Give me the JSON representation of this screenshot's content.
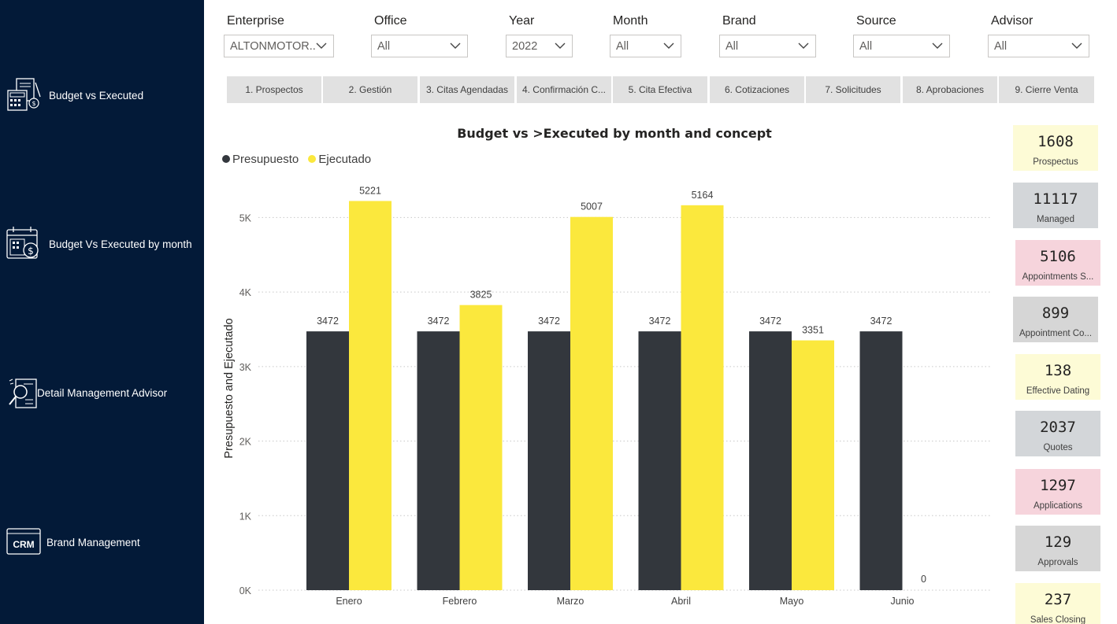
{
  "sidebar": {
    "items": [
      {
        "label": "Budget vs Executed",
        "icon": "calculator-document-icon"
      },
      {
        "label": "Budget Vs Executed by month",
        "icon": "calendar-money-icon"
      },
      {
        "label": "Detail Management Advisor",
        "icon": "document-search-icon"
      },
      {
        "label": "Brand Management",
        "icon": "crm-icon"
      }
    ]
  },
  "filters": [
    {
      "label": "Enterprise",
      "value": "ALTONMOTOR..."
    },
    {
      "label": "Office",
      "value": "All"
    },
    {
      "label": "Year",
      "value": "2022"
    },
    {
      "label": "Month",
      "value": "All"
    },
    {
      "label": "Brand",
      "value": "All"
    },
    {
      "label": "Source",
      "value": "All"
    },
    {
      "label": "Advisor",
      "value": "All"
    }
  ],
  "tabs": [
    "1. Prospectos",
    "2. Gestión",
    "3. Citas Agendadas",
    "4. Confirmación C...",
    "5. Cita Efectiva",
    "6. Cotizaciones",
    "7. Solicitudes",
    "8. Aprobaciones",
    "9. Cierre Venta"
  ],
  "chart_data": {
    "type": "bar",
    "title": "Budget vs >Executed by month and concept",
    "ylabel": "Presupuesto and Ejecutado",
    "xlabel": "",
    "categories": [
      "Enero",
      "Febrero",
      "Marzo",
      "Abril",
      "Mayo",
      "Junio"
    ],
    "series": [
      {
        "name": "Presupuesto",
        "color": "#33373d",
        "values": [
          3472,
          3472,
          3472,
          3472,
          3472,
          3472
        ]
      },
      {
        "name": "Ejecutado",
        "color": "#fbe83d",
        "values": [
          5221,
          3825,
          5007,
          5164,
          3351,
          0
        ]
      }
    ],
    "ylim": [
      0,
      5500
    ],
    "yticks": [
      0,
      1000,
      2000,
      3000,
      4000,
      5000
    ],
    "ytick_labels": [
      "0K",
      "1K",
      "2K",
      "3K",
      "4K",
      "5K"
    ],
    "grid": true,
    "legend_position": "top-left"
  },
  "kpis": [
    {
      "value": "1608",
      "label": "Prospectus",
      "color": "#fdfbd6"
    },
    {
      "value": "11117",
      "label": "Managed",
      "color": "#d3d6d9"
    },
    {
      "value": "5106",
      "label": "Appointments S...",
      "color": "#f6d4dc"
    },
    {
      "value": "899",
      "label": "Appointment Co...",
      "color": "#d6d6d6"
    },
    {
      "value": "138",
      "label": "Effective Dating",
      "color": "#fdfbd6"
    },
    {
      "value": "2037",
      "label": "Quotes",
      "color": "#d3d6d9"
    },
    {
      "value": "1297",
      "label": "Applications",
      "color": "#f6d4dc"
    },
    {
      "value": "129",
      "label": "Approvals",
      "color": "#d6d6d6"
    },
    {
      "value": "237",
      "label": "Sales Closing",
      "color": "#fdfbd6"
    }
  ]
}
